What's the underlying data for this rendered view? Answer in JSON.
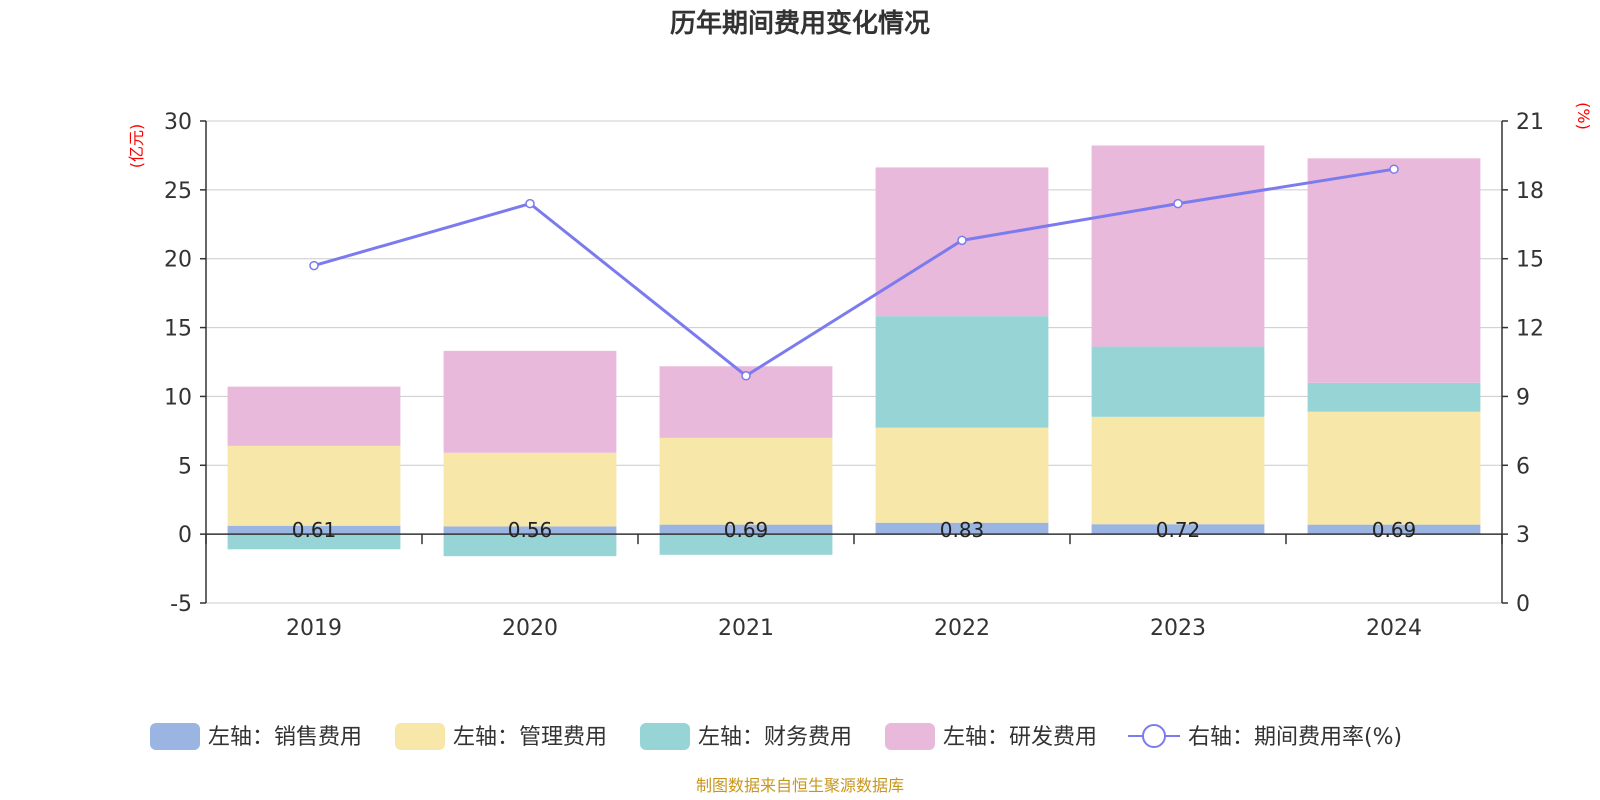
{
  "chart_data": {
    "type": "bar",
    "title": "历年期间费用变化情况",
    "categories": [
      "2019",
      "2020",
      "2021",
      "2022",
      "2023",
      "2024"
    ],
    "left_axis": {
      "unit": "(亿元)",
      "ylim": [
        -5,
        30
      ],
      "ticks": [
        30,
        25,
        20,
        15,
        10,
        5,
        0,
        -5
      ]
    },
    "right_axis": {
      "unit": "(%)",
      "ylim": [
        0,
        21
      ],
      "ticks": [
        21,
        18,
        15,
        12,
        9,
        6,
        3,
        0
      ]
    },
    "series": [
      {
        "name": "左轴：销售费用",
        "kind": "bar",
        "axis": "left",
        "color": "#9BB5E2",
        "values": [
          0.61,
          0.56,
          0.69,
          0.83,
          0.72,
          0.69
        ],
        "labels": [
          "0.61",
          "0.56",
          "0.69",
          "0.83",
          "0.72",
          "0.69"
        ]
      },
      {
        "name": "左轴：管理费用",
        "kind": "bar",
        "axis": "left",
        "color": "#F7E7A8",
        "values": [
          5.8,
          5.35,
          6.3,
          6.9,
          7.8,
          8.2
        ]
      },
      {
        "name": "左轴：财务费用",
        "kind": "bar",
        "axis": "left",
        "color": "#97D4D6",
        "values": [
          -1.1,
          -1.6,
          -1.5,
          8.1,
          5.1,
          2.1
        ]
      },
      {
        "name": "左轴：研发费用",
        "kind": "bar",
        "axis": "left",
        "color": "#E8B9DA",
        "values": [
          4.3,
          7.4,
          5.2,
          10.8,
          14.6,
          16.3
        ]
      },
      {
        "name": "右轴：期间费用率(%)",
        "kind": "line",
        "axis": "right",
        "color": "#7B7BEF",
        "values": [
          14.7,
          17.4,
          9.9,
          15.8,
          17.4,
          18.9
        ]
      }
    ],
    "legend_position": "bottom",
    "grid": true
  },
  "source": "制图数据来自恒生聚源数据库",
  "colors": {
    "unit_label": "#FF0000",
    "source": "#C8961E",
    "axis": "#333333",
    "grid": "#CCCCCC"
  }
}
